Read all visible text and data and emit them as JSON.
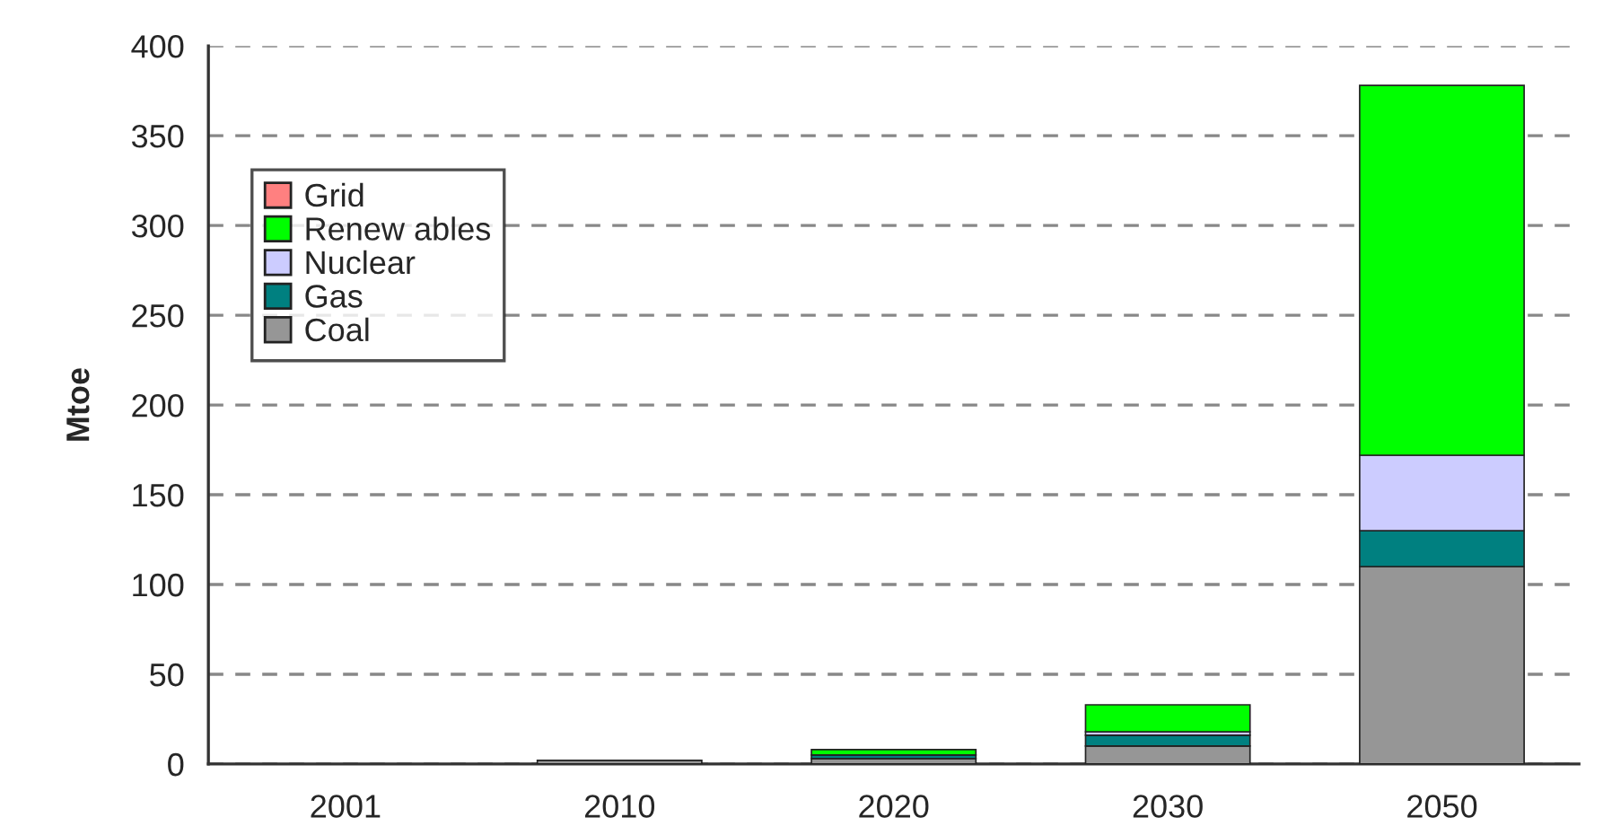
{
  "chart_data": {
    "type": "bar",
    "ylabel": "Mtoe",
    "categories": [
      "2001",
      "2010",
      "2020",
      "2030",
      "2050"
    ],
    "stacked": true,
    "series": [
      {
        "name": "Coal",
        "color": "#969696",
        "values": [
          0,
          2,
          3,
          10,
          110
        ]
      },
      {
        "name": "Gas",
        "color": "#008080",
        "values": [
          0,
          0,
          2,
          6,
          20
        ]
      },
      {
        "name": "Nuclear",
        "color": "#ccccff",
        "values": [
          0,
          0,
          null,
          2,
          42
        ]
      },
      {
        "name": "Renew ables",
        "color": "#00ff00",
        "values": [
          0,
          0,
          3,
          15,
          206
        ]
      },
      {
        "name": "Grid",
        "color": "#ff8080",
        "values": [
          0,
          0,
          0,
          0,
          0
        ]
      }
    ],
    "ylim": [
      0,
      400
    ],
    "yticks": [
      0,
      50,
      100,
      150,
      200,
      250,
      300,
      350,
      400
    ],
    "grid": "y",
    "legend": "top left"
  }
}
